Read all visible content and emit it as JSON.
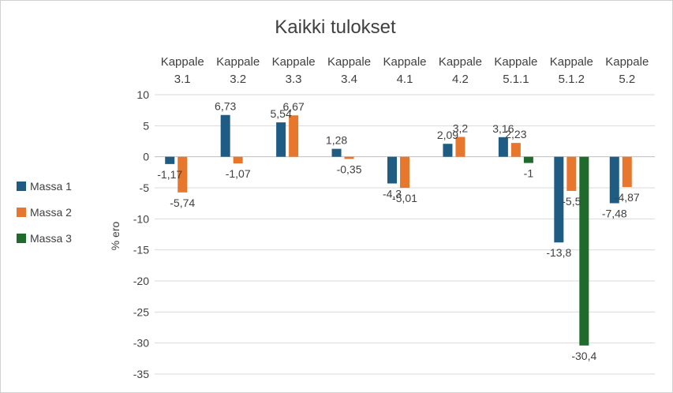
{
  "chart_data": {
    "type": "bar",
    "title": "Kaikki tulokset",
    "xlabel": "",
    "ylabel": "% ero",
    "categories": [
      [
        "Kappale",
        "3.1"
      ],
      [
        "Kappale",
        "3.2"
      ],
      [
        "Kappale",
        "3.3"
      ],
      [
        "Kappale",
        "3.4"
      ],
      [
        "Kappale",
        "4.1"
      ],
      [
        "Kappale",
        "4.2"
      ],
      [
        "Kappale",
        "5.1.1"
      ],
      [
        "Kappale",
        "5.1.2"
      ],
      [
        "Kappale",
        "5.2"
      ]
    ],
    "series": [
      {
        "name": "Massa 1",
        "color": "#1f5c84",
        "values": [
          -1.17,
          6.73,
          5.54,
          1.28,
          -4.3,
          2.09,
          3.16,
          -13.8,
          -7.48
        ],
        "labels": [
          "-1,17",
          "6,73",
          "5,54",
          "1,28",
          "-4,3",
          "2,09",
          "3,16",
          "-13,8",
          "-7,48"
        ]
      },
      {
        "name": "Massa 2",
        "color": "#e8772e",
        "values": [
          -5.74,
          -1.07,
          6.67,
          -0.35,
          -5.01,
          3.2,
          2.23,
          -5.5,
          -4.87
        ],
        "labels": [
          "-5,74",
          "-1,07",
          "6,67",
          "-0,35",
          "-5,01",
          "3,2",
          "2,23",
          "-5,5",
          "-4,87"
        ]
      },
      {
        "name": "Massa 3",
        "color": "#1e6b2c",
        "values": [
          null,
          null,
          null,
          null,
          null,
          null,
          -1,
          -30.4,
          null
        ],
        "labels": [
          "",
          "",
          "",
          "",
          "",
          "",
          "-1",
          "-30,4",
          ""
        ]
      }
    ],
    "ylim": [
      -35,
      10
    ],
    "yticks": [
      10,
      5,
      0,
      -5,
      -10,
      -15,
      -20,
      -25,
      -30,
      -35
    ],
    "grid": true,
    "legend_position": "left"
  }
}
